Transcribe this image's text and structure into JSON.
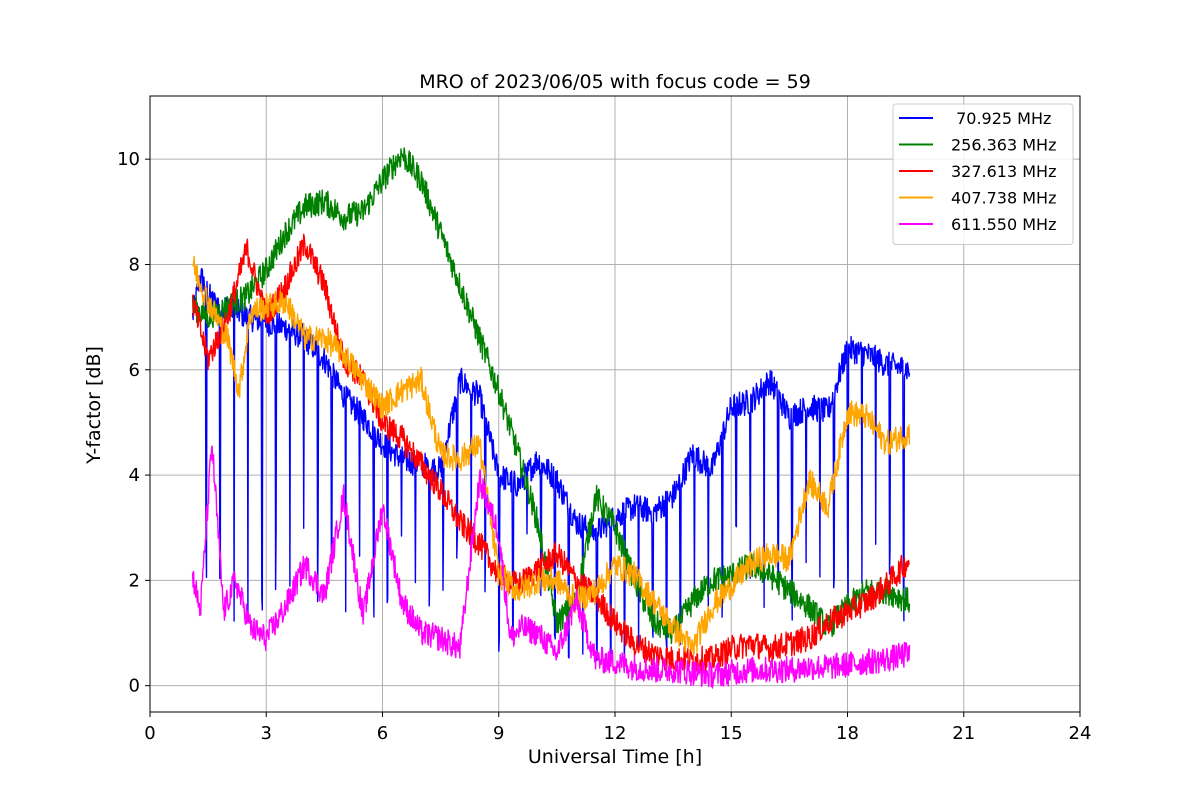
{
  "chart_data": {
    "type": "line",
    "title": "MRO of 2023/06/05 with focus code = 59",
    "xlabel": "Universal Time [h]",
    "ylabel": "Y-factor [dB]",
    "xlim": [
      0,
      24
    ],
    "ylim": [
      -0.5,
      11.2
    ],
    "xticks": [
      0,
      3,
      6,
      9,
      12,
      15,
      18,
      21,
      24
    ],
    "yticks": [
      0,
      2,
      4,
      6,
      8,
      10
    ],
    "grid": true,
    "legend_position": "top-right",
    "series": [
      {
        "name": " 70.925 MHz",
        "color": "#0000ff",
        "x": [
          1.1,
          1.3,
          1.6,
          2.0,
          2.5,
          3.0,
          3.5,
          4.0,
          4.5,
          5.0,
          5.5,
          6.0,
          6.5,
          7.0,
          7.5,
          8.0,
          8.5,
          9.0,
          9.5,
          10.0,
          10.5,
          11.0,
          11.5,
          12.0,
          12.5,
          13.0,
          13.5,
          14.0,
          14.5,
          15.0,
          15.5,
          16.0,
          16.5,
          17.0,
          17.5,
          18.0,
          18.5,
          19.0,
          19.6
        ],
        "values": [
          7.0,
          7.8,
          7.3,
          7.2,
          7.0,
          6.9,
          6.8,
          6.6,
          6.2,
          5.5,
          5.1,
          4.6,
          4.3,
          4.2,
          4.1,
          5.8,
          5.5,
          4.0,
          3.8,
          4.3,
          3.9,
          3.1,
          2.9,
          3.2,
          3.4,
          3.3,
          3.6,
          4.4,
          4.1,
          5.3,
          5.4,
          5.8,
          5.1,
          5.3,
          5.2,
          6.4,
          6.3,
          6.1,
          6.0
        ],
        "dip_spacing_h": 0.36,
        "dip_low": [
          1.5,
          4.0
        ]
      },
      {
        "name": "256.363 MHz",
        "color": "#008000",
        "x": [
          1.1,
          1.5,
          2.0,
          2.5,
          3.0,
          3.5,
          4.0,
          4.5,
          5.0,
          5.5,
          6.0,
          6.5,
          7.0,
          7.5,
          8.0,
          8.5,
          9.0,
          9.5,
          10.0,
          10.5,
          11.0,
          11.5,
          12.0,
          12.5,
          13.0,
          13.5,
          14.0,
          14.5,
          15.0,
          15.5,
          16.0,
          16.5,
          17.0,
          17.5,
          18.0,
          18.5,
          19.0,
          19.6
        ],
        "values": [
          7.2,
          7.0,
          7.2,
          7.4,
          7.9,
          8.6,
          9.1,
          9.2,
          8.9,
          9.0,
          9.6,
          10.1,
          9.6,
          8.6,
          7.6,
          6.6,
          5.6,
          4.4,
          3.1,
          1.2,
          1.6,
          3.6,
          3.0,
          2.0,
          1.2,
          1.0,
          1.6,
          2.0,
          2.1,
          2.3,
          2.1,
          1.8,
          1.5,
          1.1,
          1.5,
          1.8,
          1.8,
          1.6
        ]
      },
      {
        "name": "327.613 MHz",
        "color": "#ff0000",
        "x": [
          1.1,
          1.5,
          2.0,
          2.5,
          3.0,
          3.5,
          4.0,
          4.5,
          5.0,
          5.5,
          6.0,
          6.5,
          7.0,
          7.5,
          8.0,
          8.5,
          9.0,
          9.5,
          10.0,
          10.5,
          11.0,
          11.5,
          12.0,
          12.5,
          13.0,
          13.5,
          14.0,
          14.5,
          15.0,
          15.5,
          16.0,
          16.5,
          17.0,
          17.5,
          18.0,
          18.5,
          19.0,
          19.6
        ],
        "values": [
          7.3,
          6.2,
          7.0,
          8.3,
          7.0,
          7.6,
          8.4,
          7.6,
          6.2,
          5.8,
          5.0,
          4.7,
          4.2,
          3.7,
          3.1,
          2.7,
          2.1,
          1.9,
          2.2,
          2.5,
          2.0,
          1.7,
          1.2,
          0.8,
          0.6,
          0.5,
          0.5,
          0.5,
          0.7,
          0.8,
          0.7,
          0.8,
          0.9,
          1.2,
          1.4,
          1.6,
          1.9,
          2.4
        ]
      },
      {
        "name": "407.738 MHz",
        "color": "#ffa500",
        "x": [
          1.1,
          1.5,
          2.0,
          2.3,
          2.6,
          3.0,
          3.5,
          4.0,
          4.5,
          5.0,
          5.5,
          6.0,
          6.5,
          7.0,
          7.5,
          8.0,
          8.5,
          9.0,
          9.5,
          10.0,
          10.5,
          11.0,
          11.5,
          12.0,
          12.5,
          13.0,
          13.5,
          14.0,
          14.5,
          15.0,
          15.5,
          16.0,
          16.5,
          17.0,
          17.5,
          18.0,
          18.5,
          19.0,
          19.6
        ],
        "values": [
          8.0,
          7.3,
          6.6,
          5.6,
          7.1,
          7.2,
          7.3,
          6.6,
          6.6,
          6.3,
          5.8,
          5.3,
          5.6,
          5.8,
          4.4,
          4.3,
          4.6,
          2.1,
          1.8,
          2.0,
          2.0,
          1.6,
          1.8,
          2.3,
          2.1,
          1.6,
          1.1,
          0.7,
          1.5,
          1.9,
          2.3,
          2.5,
          2.4,
          3.9,
          3.4,
          5.2,
          5.1,
          4.6,
          4.8
        ]
      },
      {
        "name": "611.550 MHz",
        "color": "#ff00ff",
        "x": [
          1.1,
          1.3,
          1.6,
          1.9,
          2.2,
          2.6,
          3.0,
          3.5,
          4.0,
          4.5,
          5.0,
          5.5,
          6.0,
          6.5,
          7.0,
          7.5,
          8.0,
          8.5,
          9.0,
          9.3,
          9.6,
          10.0,
          10.5,
          11.0,
          11.5,
          12.0,
          12.5,
          13.0,
          13.5,
          14.0,
          14.5,
          15.0,
          15.5,
          16.0,
          16.5,
          17.0,
          17.5,
          18.0,
          18.5,
          19.0,
          19.6
        ],
        "values": [
          2.1,
          1.4,
          4.6,
          1.4,
          2.0,
          1.1,
          0.9,
          1.5,
          2.3,
          1.7,
          3.6,
          1.3,
          3.4,
          1.6,
          1.0,
          0.9,
          0.7,
          3.9,
          2.9,
          0.9,
          1.1,
          1.0,
          0.6,
          1.6,
          0.5,
          0.45,
          0.35,
          0.3,
          0.3,
          0.25,
          0.2,
          0.25,
          0.3,
          0.3,
          0.3,
          0.35,
          0.35,
          0.4,
          0.45,
          0.5,
          0.6
        ]
      }
    ]
  }
}
